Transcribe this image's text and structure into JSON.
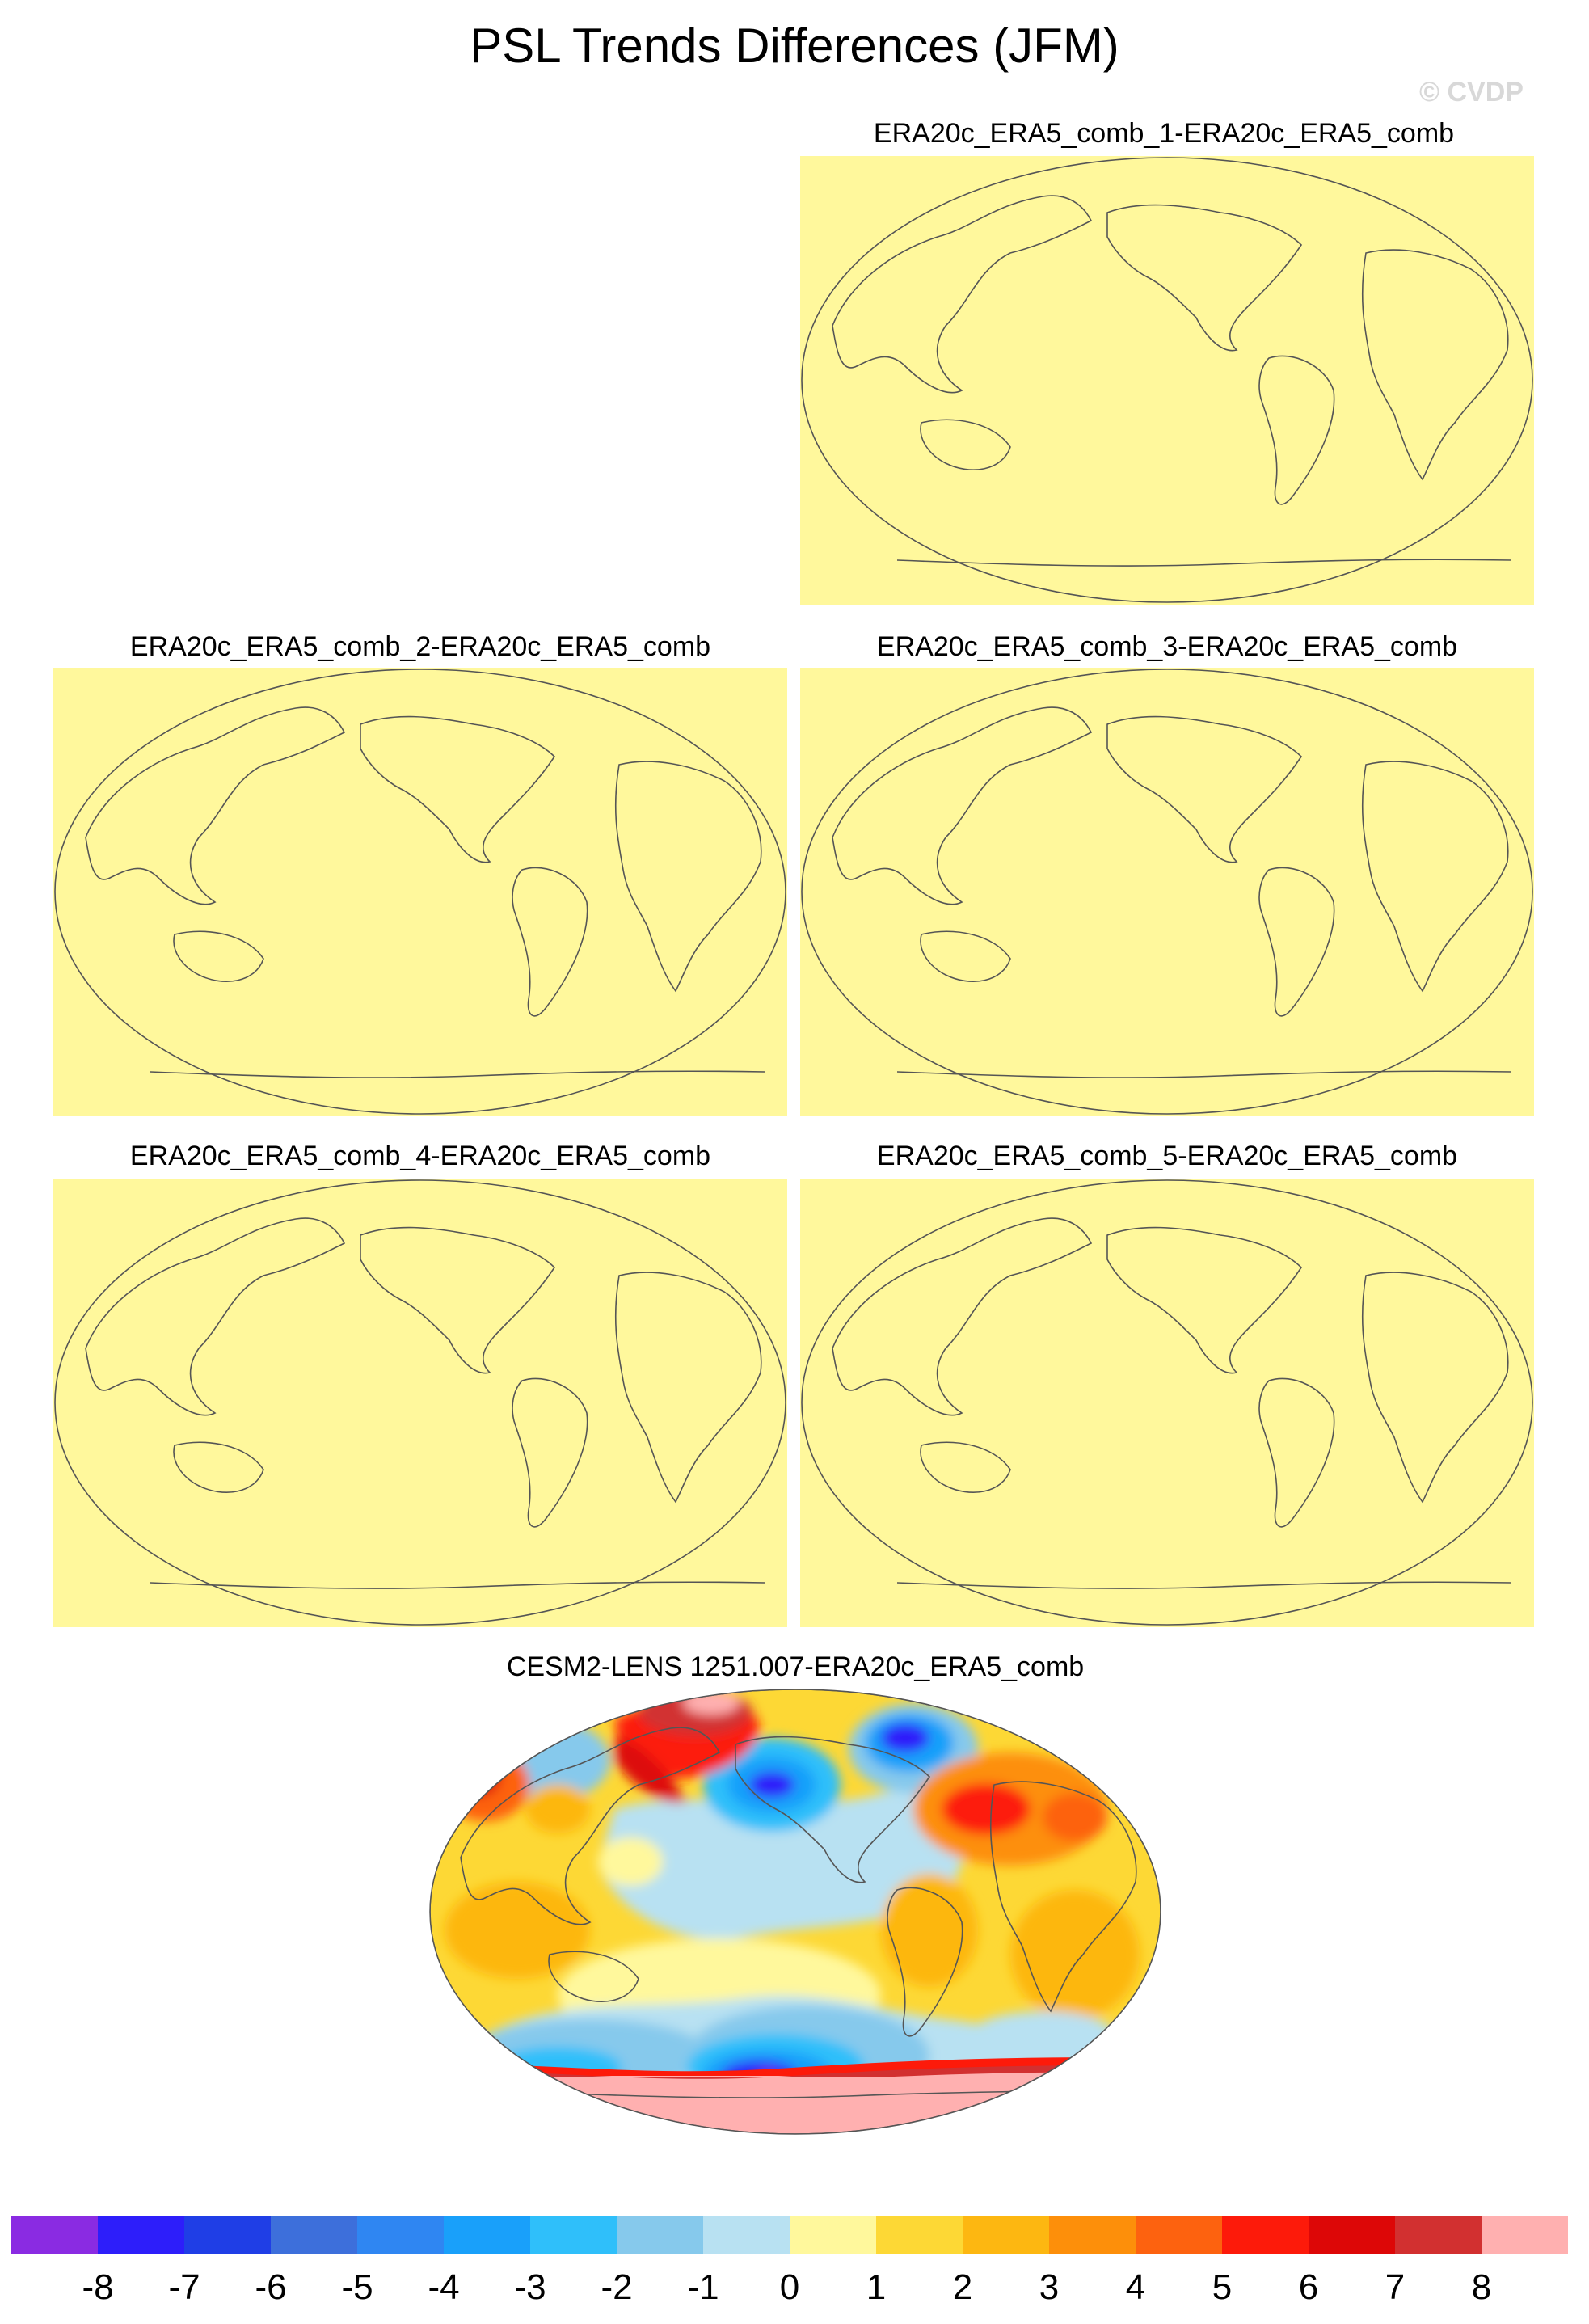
{
  "figure": {
    "title": "PSL Trends Differences (JFM)",
    "watermark": "© CVDP"
  },
  "panels": [
    {
      "title": "ERA20c_ERA5_comb_1-ERA20c_ERA5_comb",
      "fill": "uniform",
      "color": "#fff89c"
    },
    {
      "title": "ERA20c_ERA5_comb_2-ERA20c_ERA5_comb",
      "fill": "uniform",
      "color": "#fff89c"
    },
    {
      "title": "ERA20c_ERA5_comb_3-ERA20c_ERA5_comb",
      "fill": "uniform",
      "color": "#fff89c"
    },
    {
      "title": "ERA20c_ERA5_comb_4-ERA20c_ERA5_comb",
      "fill": "uniform",
      "color": "#fff89c"
    },
    {
      "title": "ERA20c_ERA5_comb_5-ERA20c_ERA5_comb",
      "fill": "uniform",
      "color": "#fff89c"
    },
    {
      "title": "CESM2-LENS 1251.007-ERA20c_ERA5_comb",
      "fill": "filled-contours"
    }
  ],
  "colorbar": {
    "colors": [
      "#8a2be2",
      "#2d1efa",
      "#1f3ee6",
      "#3d6fdb",
      "#2f86f2",
      "#19a0fa",
      "#2fbffa",
      "#86c9ec",
      "#b8e1f2",
      "#fff89c",
      "#fdd835",
      "#fdb711",
      "#fd8f0a",
      "#fd620f",
      "#fd1a0a",
      "#dd0707",
      "#d23030",
      "#ffb0b0"
    ],
    "labels": [
      "-8",
      "-7",
      "-6",
      "-5",
      "-4",
      "-3",
      "-2",
      "-1",
      "0",
      "1",
      "2",
      "3",
      "4",
      "5",
      "6",
      "7",
      "8"
    ]
  }
}
